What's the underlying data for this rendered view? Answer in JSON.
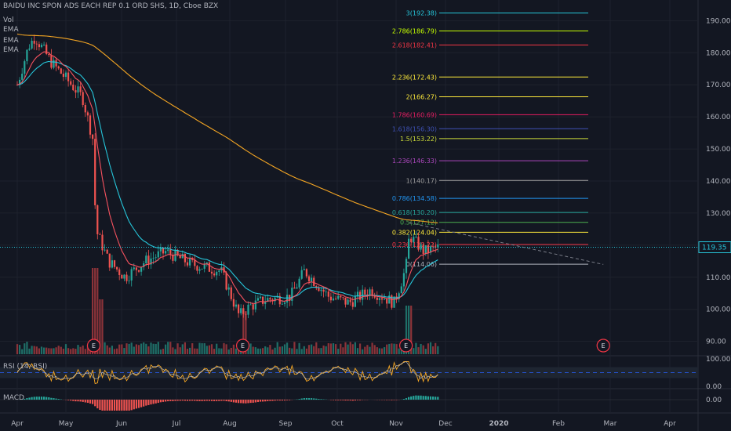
{
  "header": {
    "title": "BAIDU INC SPON ADS EACH REP 0.1 ORD SHS, 1D, Cboe BZX",
    "vol_label": "Vol",
    "ema_label": "EMA",
    "rsi_label": "RSI (14, RSI)",
    "macd_label": "MACD"
  },
  "colors": {
    "background": "#131722",
    "up": "#26a69a",
    "down": "#ef5350",
    "ema_fast": "#f7525f",
    "ema_mid": "#26c6da",
    "ema_slow": "#f5a623",
    "price_line": "#26c6da"
  },
  "chart_data": {
    "type": "candlestick",
    "symbol": "BAIDU INC SPON ADS EACH REP 0.1 ORD SHS",
    "interval": "1D",
    "exchange": "Cboe BZX",
    "last_price": "119.35",
    "y_axis": {
      "ticks": [
        "190.00",
        "180.00",
        "170.00",
        "160.00",
        "150.00",
        "140.00",
        "130.00",
        "120.00",
        "110.00",
        "100.00",
        "90.00"
      ],
      "range": [
        86,
        194
      ]
    },
    "x_axis": {
      "ticks": [
        "Apr",
        "May",
        "Jun",
        "Jul",
        "Aug",
        "Sep",
        "Oct",
        "Nov",
        "Dec",
        "2020",
        "Feb",
        "Mar",
        "Apr"
      ]
    },
    "price_anchors": [
      {
        "date": "Apr 1",
        "close": 170
      },
      {
        "date": "Apr 8",
        "close": 182
      },
      {
        "date": "Apr 12",
        "close": 185
      },
      {
        "date": "Apr 22",
        "close": 177
      },
      {
        "date": "May 1",
        "close": 172
      },
      {
        "date": "May 10",
        "close": 166
      },
      {
        "date": "May 16",
        "close": 152
      },
      {
        "date": "May 17",
        "close": 125
      },
      {
        "date": "May 24",
        "close": 115
      },
      {
        "date": "Jun 3",
        "close": 110
      },
      {
        "date": "Jun 14",
        "close": 115
      },
      {
        "date": "Jun 25",
        "close": 118
      },
      {
        "date": "Jul 10",
        "close": 114
      },
      {
        "date": "Jul 26",
        "close": 112
      },
      {
        "date": "Aug 6",
        "close": 98
      },
      {
        "date": "Aug 12",
        "close": 101
      },
      {
        "date": "Aug 20",
        "close": 103
      },
      {
        "date": "Sep 4",
        "close": 104
      },
      {
        "date": "Sep 12",
        "close": 112
      },
      {
        "date": "Sep 26",
        "close": 104
      },
      {
        "date": "Oct 7",
        "close": 102
      },
      {
        "date": "Oct 18",
        "close": 106
      },
      {
        "date": "Oct 30",
        "close": 102
      },
      {
        "date": "Nov 7",
        "close": 113
      },
      {
        "date": "Nov 9",
        "close": 123
      },
      {
        "date": "Nov 18",
        "close": 118
      },
      {
        "date": "Nov 27",
        "close": 119.35
      }
    ],
    "fibonacci": [
      {
        "label": "0(114.06)",
        "ratio": 0,
        "value": 114.06,
        "color": "#b2b5be"
      },
      {
        "label": "0.236(120.22)",
        "ratio": 0.236,
        "value": 120.22,
        "color": "#f23645"
      },
      {
        "label": "0.382(124.04)",
        "ratio": 0.382,
        "value": 124.04,
        "color": "#ffeb3b"
      },
      {
        "label": "0.5(127.12)",
        "ratio": 0.5,
        "value": 127.12,
        "color": "#4caf50"
      },
      {
        "label": "0.618(130.20)",
        "ratio": 0.618,
        "value": 130.2,
        "color": "#26a69a"
      },
      {
        "label": "0.786(134.58)",
        "ratio": 0.786,
        "value": 134.58,
        "color": "#2196f3"
      },
      {
        "label": "1(140.17)",
        "ratio": 1,
        "value": 140.17,
        "color": "#9e9e9e"
      },
      {
        "label": "1.236(146.33)",
        "ratio": 1.236,
        "value": 146.33,
        "color": "#ab47bc"
      },
      {
        "label": "1.5(153.22)",
        "ratio": 1.5,
        "value": 153.22,
        "color": "#cddc39"
      },
      {
        "label": "1.618(156.30)",
        "ratio": 1.618,
        "value": 156.3,
        "color": "#3f51b5"
      },
      {
        "label": "1.786(160.69)",
        "ratio": 1.786,
        "value": 160.69,
        "color": "#e91e63"
      },
      {
        "label": "2(166.27)",
        "ratio": 2,
        "value": 166.27,
        "color": "#ffeb3b"
      },
      {
        "label": "2.236(172.43)",
        "ratio": 2.236,
        "value": 172.43,
        "color": "#ffeb3b"
      },
      {
        "label": "2.618(182.41)",
        "ratio": 2.618,
        "value": 182.41,
        "color": "#f23645"
      },
      {
        "label": "2.786(186.79)",
        "ratio": 2.786,
        "value": 186.79,
        "color": "#c6ff00"
      },
      {
        "label": "3(192.38)",
        "ratio": 3,
        "value": 192.38,
        "color": "#26c6da"
      }
    ],
    "earnings_marker": "E",
    "earnings_dates": [
      "May 16",
      "Aug 8",
      "Nov 7",
      "Feb 27"
    ],
    "rsi_axis": {
      "ticks": [
        "100.00",
        "0.00"
      ]
    },
    "macd_axis": {
      "ticks": [
        "0.00"
      ]
    },
    "trendline": {
      "from": {
        "date": "Nov 9",
        "value": 127
      },
      "to": {
        "date": "Feb 27",
        "value": 114
      }
    }
  }
}
